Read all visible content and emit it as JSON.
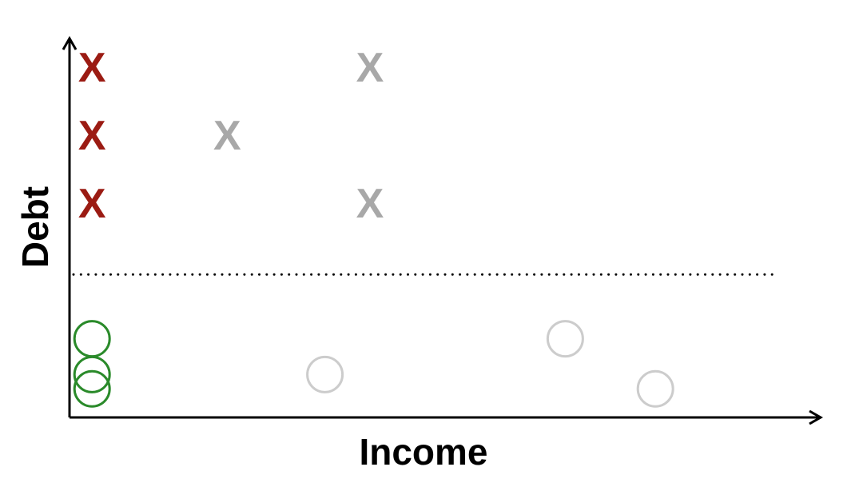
{
  "axes": {
    "x_label": "Income",
    "y_label": "Debt"
  },
  "colors": {
    "axis": "#000000",
    "threshold": "#000000",
    "highlight_x": "#9b1b13",
    "muted_x": "#a8a8a8",
    "highlight_o": "#2a8a2a",
    "muted_o": "#cccccc"
  },
  "marker_symbol": "X",
  "chart_data": {
    "type": "scatter",
    "xlabel": "Income",
    "ylabel": "Debt",
    "xlim": [
      0,
      10
    ],
    "ylim": [
      0,
      10
    ],
    "threshold_y": 4.0,
    "series": [
      {
        "marker": "x",
        "highlight": true,
        "points": [
          {
            "x": 0.3,
            "y": 9.8
          },
          {
            "x": 0.3,
            "y": 7.9
          },
          {
            "x": 0.3,
            "y": 6.0
          }
        ]
      },
      {
        "marker": "x",
        "highlight": false,
        "points": [
          {
            "x": 2.1,
            "y": 7.9
          },
          {
            "x": 4.0,
            "y": 9.8
          },
          {
            "x": 4.0,
            "y": 6.0
          }
        ]
      },
      {
        "marker": "o",
        "highlight": true,
        "points": [
          {
            "x": 0.3,
            "y": 2.2
          },
          {
            "x": 0.3,
            "y": 1.2
          },
          {
            "x": 0.3,
            "y": 0.8
          }
        ]
      },
      {
        "marker": "o",
        "highlight": false,
        "points": [
          {
            "x": 3.4,
            "y": 1.2
          },
          {
            "x": 6.6,
            "y": 2.2
          },
          {
            "x": 7.8,
            "y": 0.8
          }
        ]
      }
    ]
  }
}
